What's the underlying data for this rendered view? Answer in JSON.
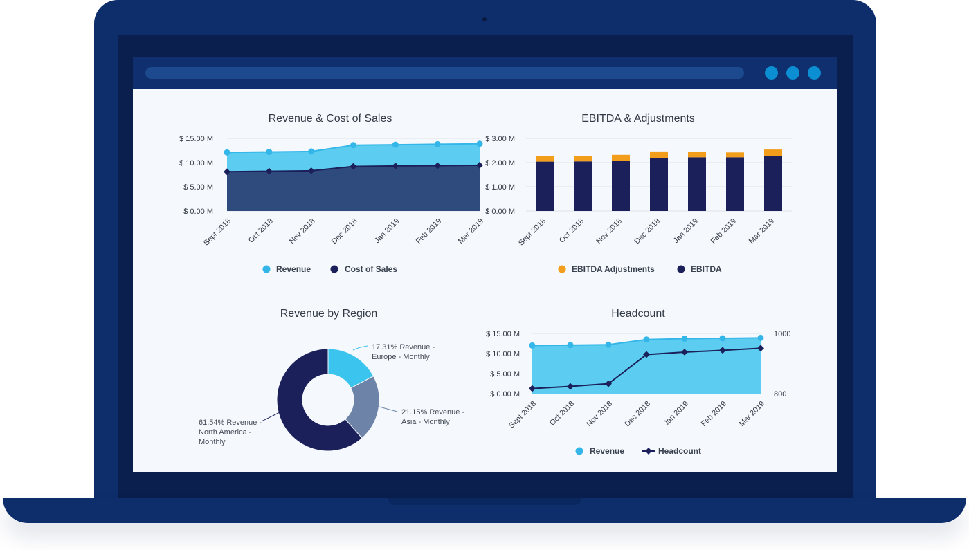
{
  "colors": {
    "revenue": "#5ccdf0",
    "revenue_point": "#34b7e8",
    "cost": "#2f4a7c",
    "dark": "#1b1f5a",
    "adjust": "#f29d1b",
    "asia": "#6d84a8",
    "europe": "#3bc4ee"
  },
  "window_buttons": [
    "blue-dot-icon",
    "blue-dot-icon",
    "blue-dot-icon"
  ],
  "chart_data": [
    {
      "type": "area",
      "title": "Revenue & Cost of Sales",
      "categories": [
        "Sept 2018",
        "Oct 2018",
        "Nov 2018",
        "Dec 2018",
        "Jan 2019",
        "Feb 2019",
        "Mar 2019"
      ],
      "series": [
        {
          "name": "Revenue",
          "values": [
            12.1,
            12.2,
            12.3,
            13.6,
            13.7,
            13.8,
            13.9
          ]
        },
        {
          "name": "Cost of Sales",
          "values": [
            8.1,
            8.2,
            8.3,
            9.2,
            9.3,
            9.35,
            9.45
          ]
        }
      ],
      "ylim": [
        0,
        15
      ],
      "y_ticks": [
        "$ 15.00 M",
        "$ 10.00 M",
        "$ 5.00 M",
        "$ 0.00 M"
      ],
      "legend": [
        "Revenue",
        "Cost of Sales"
      ],
      "legend_position": "bottom",
      "grid": true
    },
    {
      "type": "bar",
      "stacked": true,
      "title": "EBITDA & Adjustments",
      "categories": [
        "Sept 2018",
        "Oct 2018",
        "Nov 2018",
        "Dec 2018",
        "Jan 2019",
        "Feb 2019",
        "Mar 2019"
      ],
      "series": [
        {
          "name": "EBITDA",
          "values": [
            2.04,
            2.05,
            2.07,
            2.2,
            2.22,
            2.22,
            2.26
          ]
        },
        {
          "name": "EBITDA Adjustments",
          "values": [
            0.22,
            0.23,
            0.25,
            0.26,
            0.23,
            0.2,
            0.28
          ]
        }
      ],
      "ylim": [
        0,
        3
      ],
      "y_ticks": [
        "$ 3.00 M",
        "$ 2.00 M",
        "$ 1.00 M",
        "$ 0.00 M"
      ],
      "legend": [
        "EBITDA Adjustments",
        "EBITDA"
      ],
      "legend_position": "bottom",
      "grid": true
    },
    {
      "type": "pie",
      "donut": true,
      "title": "Revenue by Region",
      "slices": [
        {
          "label": "Europe - Monthly",
          "value": 17.31,
          "annotation": [
            "17.31% Revenue -",
            "Europe - Monthly"
          ]
        },
        {
          "label": "Asia - Monthly",
          "value": 21.15,
          "annotation": [
            "21.15% Revenue -",
            "Asia - Monthly"
          ]
        },
        {
          "label": "North America - Monthly",
          "value": 61.54,
          "annotation": [
            "61.54% Revenue -",
            "North America -",
            "Monthly"
          ]
        }
      ]
    },
    {
      "type": "area",
      "title": "Headcount",
      "categories": [
        "Sept 2018",
        "Oct 2018",
        "Nov 2018",
        "Dec 2018",
        "Jan 2019",
        "Feb 2019",
        "Mar 2019"
      ],
      "series": [
        {
          "name": "Revenue",
          "axis": "left",
          "values": [
            12.0,
            12.1,
            12.2,
            13.5,
            13.7,
            13.8,
            13.9
          ]
        },
        {
          "name": "Headcount",
          "axis": "right",
          "values": [
            817,
            824,
            833,
            930,
            938,
            944,
            951
          ]
        }
      ],
      "ylim": [
        0,
        15
      ],
      "y2lim": [
        800,
        1000
      ],
      "y_ticks": [
        "$ 15.00 M",
        "$ 10.00 M",
        "$ 5.00 M",
        "$ 0.00 M"
      ],
      "y2_ticks": [
        "1000",
        "800"
      ],
      "legend": [
        "Revenue",
        "Headcount"
      ],
      "legend_position": "bottom",
      "grid": true
    }
  ]
}
